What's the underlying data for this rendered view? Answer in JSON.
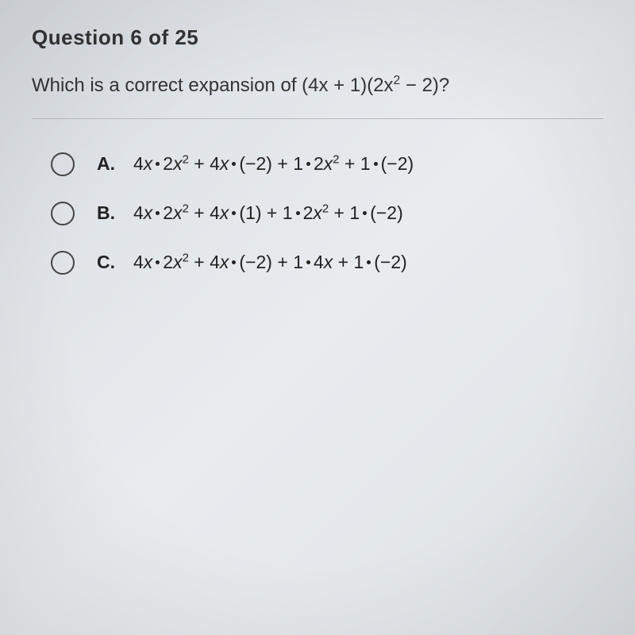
{
  "header": {
    "title": "Question 6 of 25"
  },
  "question": {
    "prompt_prefix": "Which is a correct expansion of (4",
    "prompt_mid1": "+ 1)(2",
    "prompt_mid2": " − 2)?",
    "var_x": "x",
    "sup_2": "2"
  },
  "options": [
    {
      "key": "A.",
      "terms": {
        "t1a": "4",
        "t1b": "2",
        "sup": "2",
        "t2a": "4",
        "t2b": "(−2)",
        "t3a": "1",
        "t3b": "2",
        "t4a": "1",
        "t4b": "(−2)",
        "x": "x",
        "plus": " + "
      }
    },
    {
      "key": "B.",
      "terms": {
        "t1a": "4",
        "t1b": "2",
        "sup": "2",
        "t2a": "4",
        "t2b": "(1)",
        "t3a": "1",
        "t3b": "2",
        "t4a": "1",
        "t4b": "(−2)",
        "x": "x",
        "plus": " + "
      }
    },
    {
      "key": "C.",
      "terms": {
        "t1a": "4",
        "t1b": "2",
        "sup": "2",
        "t2a": "4",
        "t2b": "(−2)",
        "t3a": "1",
        "t3b": "4",
        "t4a": "1",
        "t4b": "(−2)",
        "x": "x",
        "plus": " + ",
        "no_sup_t3": true
      }
    }
  ],
  "styling": {
    "background_gradient": [
      "#d8dde2",
      "#e8ecef",
      "#dde2e6"
    ],
    "text_color": "#2a2a2a",
    "radio_border": "#444",
    "divider_color": "#b8bcc0",
    "header_fontsize": 26,
    "question_fontsize": 24,
    "option_fontsize": 23,
    "radio_size": 30
  }
}
